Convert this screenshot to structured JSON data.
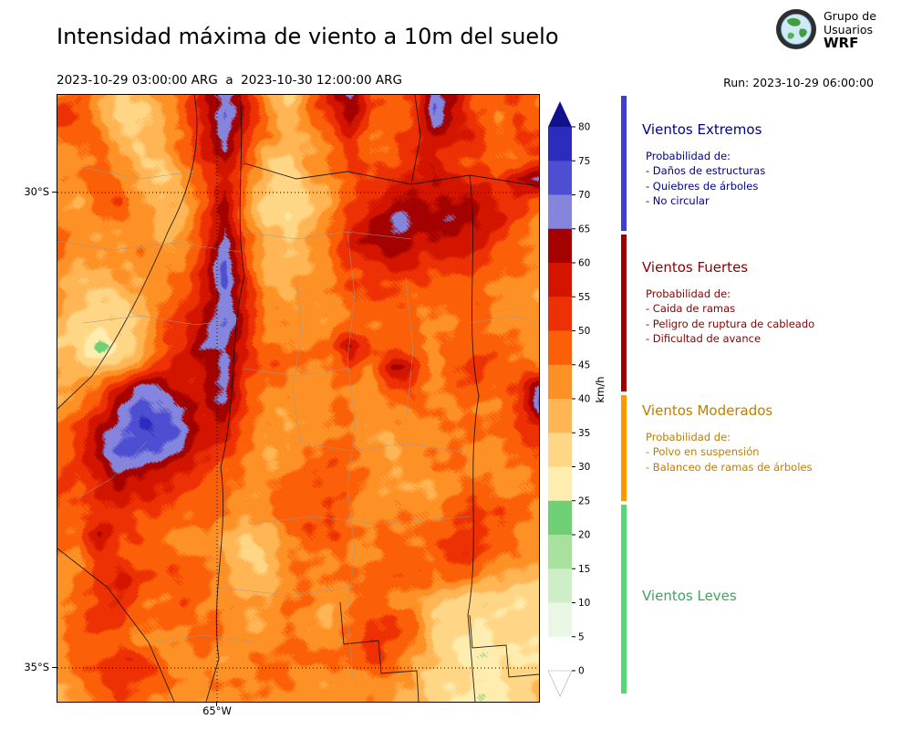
{
  "header": {
    "title": "Intensidad máxima de viento a 10m del suelo",
    "period": "2023-10-29 03:00:00 ARG  a  2023-10-30 12:00:00 ARG",
    "run_label": "Run: 2023-10-29 06:00:00",
    "logo": {
      "line1": "Grupo de",
      "line2": "Usuarios",
      "line3": "WRF"
    }
  },
  "axes": {
    "lat_ticks": [
      "30°S",
      "35°S"
    ],
    "lon_ticks": [
      "65°W"
    ],
    "colorbar_unit": "km/h"
  },
  "legend": {
    "sections": [
      {
        "title": "Vientos Extremos",
        "range_kmh": "65+",
        "text_color": "#00008b",
        "bar_color": "#3e3ecf",
        "lines": [
          "Probabilidad de:",
          "- Daños de estructuras",
          "- Quiebres de árboles",
          "- No circular"
        ]
      },
      {
        "title": "Vientos Fuertes",
        "range_kmh": "40-65",
        "text_color": "#8b0000",
        "bar_color": "#990000",
        "lines": [
          "Probabilidad de:",
          "- Caida de ramas",
          "- Peligro de ruptura de cableado",
          "- Dificultad de avance"
        ]
      },
      {
        "title": "Vientos Moderados",
        "range_kmh": "25-40",
        "text_color": "#c07c00",
        "bar_color": "#ff9800",
        "lines": [
          "Probabilidad de:",
          "- Polvo en suspensión",
          "- Balanceo de ramas de árboles"
        ]
      },
      {
        "title": "Vientos Leves",
        "range_kmh": "0-25",
        "text_color": "#3fa45c",
        "bar_color": "#55d973",
        "lines": []
      }
    ]
  },
  "chart_data": {
    "type": "heatmap",
    "title": "Intensidad máxima de viento a 10m del suelo",
    "unit": "km/h",
    "x_ticks": [
      "65°W"
    ],
    "y_ticks": [
      "30°S",
      "35°S"
    ],
    "colorbar_levels": [
      0,
      5,
      10,
      15,
      20,
      25,
      30,
      35,
      40,
      45,
      50,
      55,
      60,
      65,
      70,
      75,
      80
    ],
    "palette": [
      "#ffffff",
      "#e9f7e4",
      "#cdeec6",
      "#a8e09e",
      "#6fcf74",
      "#ffedb0",
      "#ffd685",
      "#ffb554",
      "#fe9126",
      "#fb6008",
      "#ee3104",
      "#d31500",
      "#a30200",
      "#8585dd",
      "#4e4ed2",
      "#2b2bbd",
      "#12128f"
    ],
    "under_color": "#ffffff",
    "over_color": "#12128f",
    "grid_rows": 30,
    "grid_cols": 24,
    "grid_orientation": "rows top(north) to bottom(south), columns left(west) to right(east), values km/h",
    "grid": [
      [
        44,
        46,
        40,
        36,
        34,
        44,
        50,
        58,
        70,
        60,
        40,
        34,
        46,
        55,
        68,
        50,
        44,
        50,
        66,
        58,
        48,
        46,
        50,
        46
      ],
      [
        52,
        50,
        42,
        34,
        32,
        40,
        48,
        60,
        72,
        58,
        42,
        36,
        44,
        52,
        62,
        48,
        46,
        52,
        70,
        60,
        50,
        44,
        52,
        48
      ],
      [
        44,
        48,
        44,
        36,
        34,
        38,
        46,
        58,
        66,
        54,
        44,
        38,
        42,
        48,
        55,
        46,
        48,
        54,
        62,
        55,
        52,
        46,
        48,
        50
      ],
      [
        42,
        46,
        48,
        40,
        36,
        36,
        44,
        56,
        60,
        48,
        36,
        32,
        40,
        46,
        50,
        48,
        50,
        55,
        58,
        52,
        50,
        48,
        46,
        48
      ],
      [
        40,
        44,
        50,
        46,
        38,
        34,
        40,
        52,
        58,
        46,
        34,
        30,
        38,
        44,
        48,
        50,
        54,
        58,
        60,
        56,
        52,
        50,
        60,
        68
      ],
      [
        42,
        40,
        46,
        50,
        40,
        34,
        38,
        48,
        60,
        44,
        32,
        30,
        36,
        42,
        50,
        56,
        60,
        62,
        62,
        60,
        58,
        54,
        52,
        46
      ],
      [
        44,
        40,
        42,
        46,
        42,
        36,
        40,
        50,
        64,
        46,
        34,
        32,
        38,
        44,
        54,
        60,
        64,
        64,
        62,
        62,
        60,
        56,
        48,
        44
      ],
      [
        46,
        42,
        40,
        42,
        44,
        38,
        42,
        54,
        68,
        50,
        36,
        34,
        40,
        46,
        56,
        62,
        64,
        62,
        60,
        58,
        56,
        50,
        46,
        42
      ],
      [
        44,
        40,
        38,
        40,
        42,
        40,
        44,
        56,
        70,
        52,
        38,
        36,
        42,
        46,
        52,
        56,
        58,
        56,
        54,
        52,
        50,
        48,
        44,
        42
      ],
      [
        42,
        38,
        36,
        38,
        40,
        42,
        46,
        58,
        70,
        54,
        40,
        38,
        42,
        44,
        48,
        52,
        52,
        50,
        50,
        48,
        48,
        46,
        44,
        40
      ],
      [
        40,
        36,
        32,
        34,
        38,
        44,
        50,
        60,
        68,
        56,
        42,
        40,
        42,
        44,
        46,
        50,
        50,
        48,
        48,
        46,
        46,
        44,
        42,
        40
      ],
      [
        38,
        34,
        30,
        32,
        36,
        46,
        52,
        62,
        68,
        58,
        44,
        42,
        44,
        44,
        46,
        48,
        48,
        46,
        46,
        44,
        46,
        44,
        42,
        40
      ],
      [
        36,
        32,
        20,
        32,
        38,
        48,
        54,
        64,
        66,
        56,
        46,
        44,
        46,
        48,
        64,
        50,
        46,
        44,
        44,
        46,
        48,
        46,
        44,
        42
      ],
      [
        38,
        36,
        34,
        38,
        44,
        52,
        58,
        60,
        66,
        54,
        48,
        46,
        46,
        46,
        50,
        46,
        62,
        58,
        44,
        48,
        50,
        48,
        46,
        44
      ],
      [
        40,
        42,
        44,
        56,
        68,
        62,
        56,
        58,
        66,
        52,
        46,
        44,
        44,
        44,
        46,
        44,
        50,
        48,
        44,
        46,
        48,
        46,
        48,
        66
      ],
      [
        42,
        46,
        52,
        64,
        72,
        70,
        66,
        58,
        64,
        50,
        44,
        42,
        42,
        44,
        44,
        42,
        44,
        46,
        44,
        44,
        46,
        46,
        50,
        68
      ],
      [
        46,
        52,
        60,
        68,
        74,
        72,
        68,
        58,
        56,
        48,
        42,
        40,
        44,
        46,
        44,
        42,
        42,
        44,
        46,
        44,
        44,
        46,
        48,
        52
      ],
      [
        48,
        54,
        62,
        70,
        72,
        68,
        62,
        54,
        50,
        46,
        42,
        40,
        46,
        48,
        46,
        44,
        40,
        42,
        46,
        46,
        42,
        44,
        46,
        48
      ],
      [
        50,
        52,
        58,
        66,
        64,
        58,
        54,
        50,
        46,
        44,
        42,
        42,
        48,
        50,
        48,
        44,
        40,
        40,
        44,
        46,
        44,
        42,
        44,
        46
      ],
      [
        52,
        50,
        54,
        58,
        56,
        52,
        50,
        48,
        44,
        42,
        44,
        46,
        50,
        52,
        48,
        44,
        42,
        40,
        42,
        44,
        46,
        44,
        42,
        44
      ],
      [
        50,
        48,
        50,
        52,
        50,
        48,
        46,
        46,
        44,
        42,
        46,
        48,
        50,
        50,
        46,
        44,
        44,
        42,
        44,
        48,
        52,
        50,
        46,
        42
      ],
      [
        48,
        46,
        62,
        50,
        48,
        46,
        44,
        44,
        40,
        36,
        38,
        46,
        50,
        48,
        46,
        44,
        46,
        44,
        46,
        50,
        54,
        50,
        44,
        42
      ],
      [
        46,
        44,
        50,
        48,
        46,
        44,
        46,
        44,
        38,
        34,
        36,
        44,
        48,
        46,
        44,
        46,
        48,
        46,
        48,
        52,
        50,
        46,
        42,
        40
      ],
      [
        44,
        46,
        52,
        54,
        52,
        48,
        50,
        46,
        40,
        36,
        38,
        44,
        46,
        44,
        46,
        48,
        50,
        48,
        46,
        48,
        46,
        42,
        38,
        36
      ],
      [
        42,
        48,
        54,
        56,
        50,
        46,
        48,
        44,
        42,
        38,
        40,
        44,
        44,
        42,
        44,
        46,
        44,
        40,
        38,
        36,
        34,
        34,
        32,
        32
      ],
      [
        44,
        50,
        52,
        50,
        46,
        44,
        46,
        44,
        42,
        40,
        42,
        44,
        42,
        40,
        46,
        52,
        52,
        46,
        36,
        32,
        30,
        32,
        30,
        30
      ],
      [
        46,
        48,
        48,
        46,
        44,
        42,
        44,
        46,
        44,
        42,
        44,
        46,
        44,
        42,
        48,
        54,
        50,
        44,
        34,
        30,
        28,
        30,
        32,
        30
      ],
      [
        44,
        46,
        50,
        54,
        52,
        48,
        44,
        44,
        42,
        44,
        46,
        48,
        46,
        44,
        46,
        50,
        46,
        40,
        34,
        30,
        28,
        28,
        30,
        32
      ],
      [
        42,
        44,
        48,
        52,
        50,
        46,
        44,
        42,
        44,
        46,
        48,
        46,
        44,
        42,
        44,
        46,
        42,
        38,
        32,
        30,
        30,
        28,
        30,
        34
      ],
      [
        40,
        42,
        46,
        48,
        46,
        44,
        42,
        40,
        42,
        44,
        46,
        44,
        42,
        40,
        42,
        44,
        40,
        36,
        32,
        30,
        28,
        28,
        32,
        36
      ]
    ]
  }
}
